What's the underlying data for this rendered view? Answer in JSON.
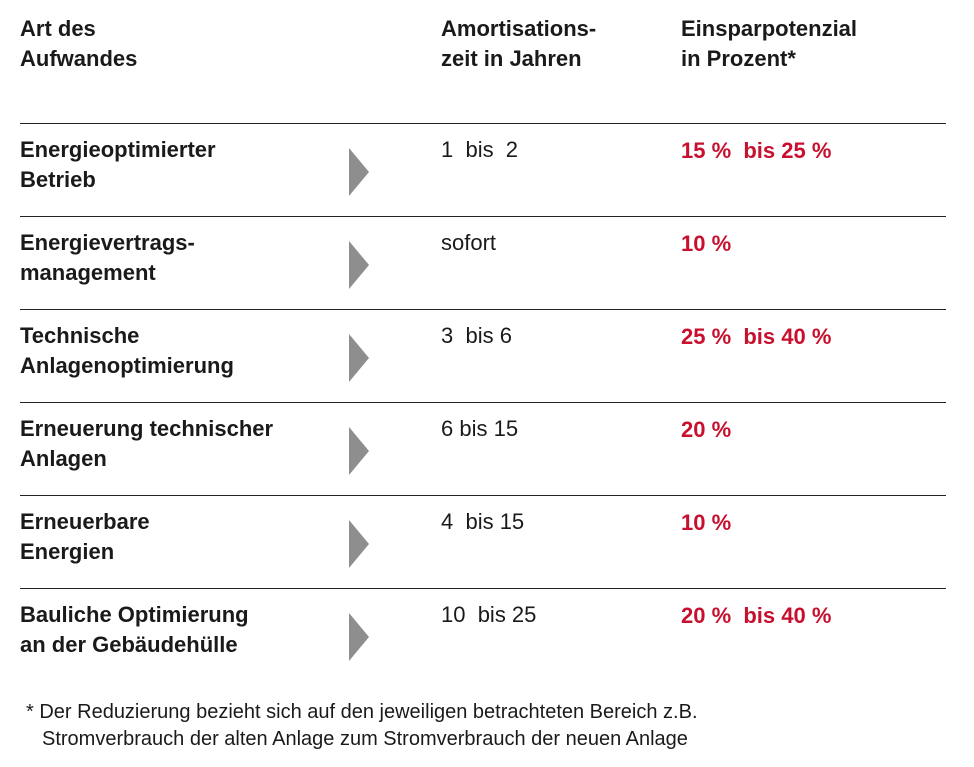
{
  "header": {
    "art": [
      "Art des",
      "Aufwandes"
    ],
    "amort": [
      "Amortisations-",
      "zeit in Jahren"
    ],
    "einsp": [
      "Einsparpotenzial",
      "in Prozent*"
    ]
  },
  "rows": [
    {
      "art": [
        "Energieoptimierter",
        "Betrieb"
      ],
      "amort": "1  bis  2",
      "einsp": "15 %  bis 25 %"
    },
    {
      "art": [
        "Energievertrags-",
        "management"
      ],
      "amort": "sofort",
      "einsp": "10 %"
    },
    {
      "art": [
        "Technische",
        "Anlagenoptimierung"
      ],
      "amort": "3  bis 6",
      "einsp": "25 %  bis 40 %"
    },
    {
      "art": [
        "Erneuerung technischer",
        "Anlagen"
      ],
      "amort": "6 bis 15",
      "einsp": "20 %"
    },
    {
      "art": [
        "Erneuerbare",
        "Energien"
      ],
      "amort": "4  bis 15",
      "einsp": "10 %"
    },
    {
      "art": [
        "Bauliche Optimierung",
        "an der Gebäudehülle"
      ],
      "amort": "10  bis 25",
      "einsp": "20 %  bis 40 %"
    }
  ],
  "footnote": [
    "* Der Reduzierung bezieht sich auf den jeweiligen betrachteten Bereich z.B.",
    "Stromverbrauch der alten Anlage zum Stromverbrauch der neuen Anlage"
  ],
  "colors": {
    "accent_red": "#c8102e",
    "arrow_gray": "#8e8e8e",
    "rule": "#222222"
  }
}
